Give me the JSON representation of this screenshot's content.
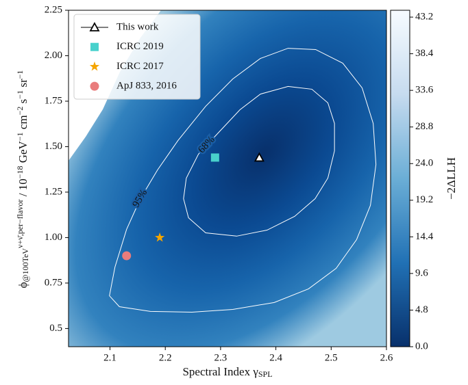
{
  "chart_data": {
    "type": "contour",
    "xlabel": [
      {
        "text": "Spectral Index γ"
      },
      {
        "text": "SPL",
        "pos": "sub"
      }
    ],
    "ylabel": [
      {
        "text": "ϕ"
      },
      {
        "text": "@100TeV",
        "pos": "sub"
      },
      {
        "text": "ν+ν̄,per−flavor",
        "pos": "sup"
      },
      {
        "text": " / 10"
      },
      {
        "text": "−18",
        "pos": "sup"
      },
      {
        "text": " GeV"
      },
      {
        "text": "−1",
        "pos": "sup"
      },
      {
        "text": " cm"
      },
      {
        "text": "−2",
        "pos": "sup"
      },
      {
        "text": " s"
      },
      {
        "text": "−1",
        "pos": "sup"
      },
      {
        "text": " sr"
      },
      {
        "text": "−1",
        "pos": "sup"
      }
    ],
    "xlim": [
      2.025,
      2.6
    ],
    "xticks": [
      2.1,
      2.2,
      2.3,
      2.4,
      2.5,
      2.6
    ],
    "ylim": [
      0.4,
      2.25
    ],
    "yticks": [
      0.5,
      0.75,
      {
        "value": 1.0,
        "label": "1.00"
      },
      1.25,
      {
        "value": 1.5,
        "label": "1.50"
      },
      1.75,
      {
        "value": 2.0,
        "label": "2.00"
      },
      2.25
    ],
    "colorbar": {
      "label": "−2ΔLLH",
      "lim": [
        0,
        44.1
      ],
      "ticks": [
        {
          "value": 0,
          "label": "0.0"
        },
        4.8,
        9.6,
        14.4,
        19.2,
        {
          "value": 24,
          "label": "24.0"
        },
        28.8,
        33.6,
        38.4,
        43.2
      ]
    },
    "contours": [
      {
        "label": "68%",
        "color": "#ffffff",
        "x": [
          2.273,
          2.242,
          2.233,
          2.238,
          2.26,
          2.298,
          2.335,
          2.372,
          2.422,
          2.465,
          2.494,
          2.506,
          2.506,
          2.494,
          2.471,
          2.434,
          2.384,
          2.329
        ],
        "y": [
          1.026,
          1.109,
          1.214,
          1.327,
          1.459,
          1.583,
          1.703,
          1.789,
          1.831,
          1.816,
          1.741,
          1.628,
          1.477,
          1.327,
          1.214,
          1.117,
          1.041,
          1.008
        ]
      },
      {
        "label": "95%",
        "color": "#ffffff",
        "x": [
          2.099,
          2.109,
          2.13,
          2.155,
          2.186,
          2.223,
          2.273,
          2.322,
          2.372,
          2.422,
          2.472,
          2.521,
          2.556,
          2.576,
          2.581,
          2.571,
          2.546,
          2.509,
          2.459,
          2.397,
          2.322,
          2.248,
          2.173,
          2.117
        ],
        "y": [
          0.68,
          0.838,
          1.045,
          1.214,
          1.372,
          1.534,
          1.722,
          1.872,
          1.985,
          2.041,
          2.034,
          1.959,
          1.823,
          1.628,
          1.402,
          1.177,
          0.989,
          0.831,
          0.718,
          0.643,
          0.605,
          0.59,
          0.594,
          0.62
        ]
      }
    ],
    "series": [
      {
        "name": "This work",
        "marker": "triangle",
        "color": "#ffffff",
        "edgecolor": "#000000",
        "linecolor": "#555555",
        "x": [
          2.37
        ],
        "y": [
          1.44
        ]
      },
      {
        "name": "ICRC 2019",
        "marker": "square",
        "color": "#48d1cc",
        "x": [
          2.29
        ],
        "y": [
          1.44
        ]
      },
      {
        "name": "ICRC 2017",
        "marker": "star",
        "color": "#f5a500",
        "x": [
          2.19
        ],
        "y": [
          1.0
        ]
      },
      {
        "name": "ApJ 833, 2016",
        "marker": "circle",
        "color": "#e97c7c",
        "x": [
          2.13
        ],
        "y": [
          0.9
        ]
      }
    ],
    "legend": "upper left"
  }
}
